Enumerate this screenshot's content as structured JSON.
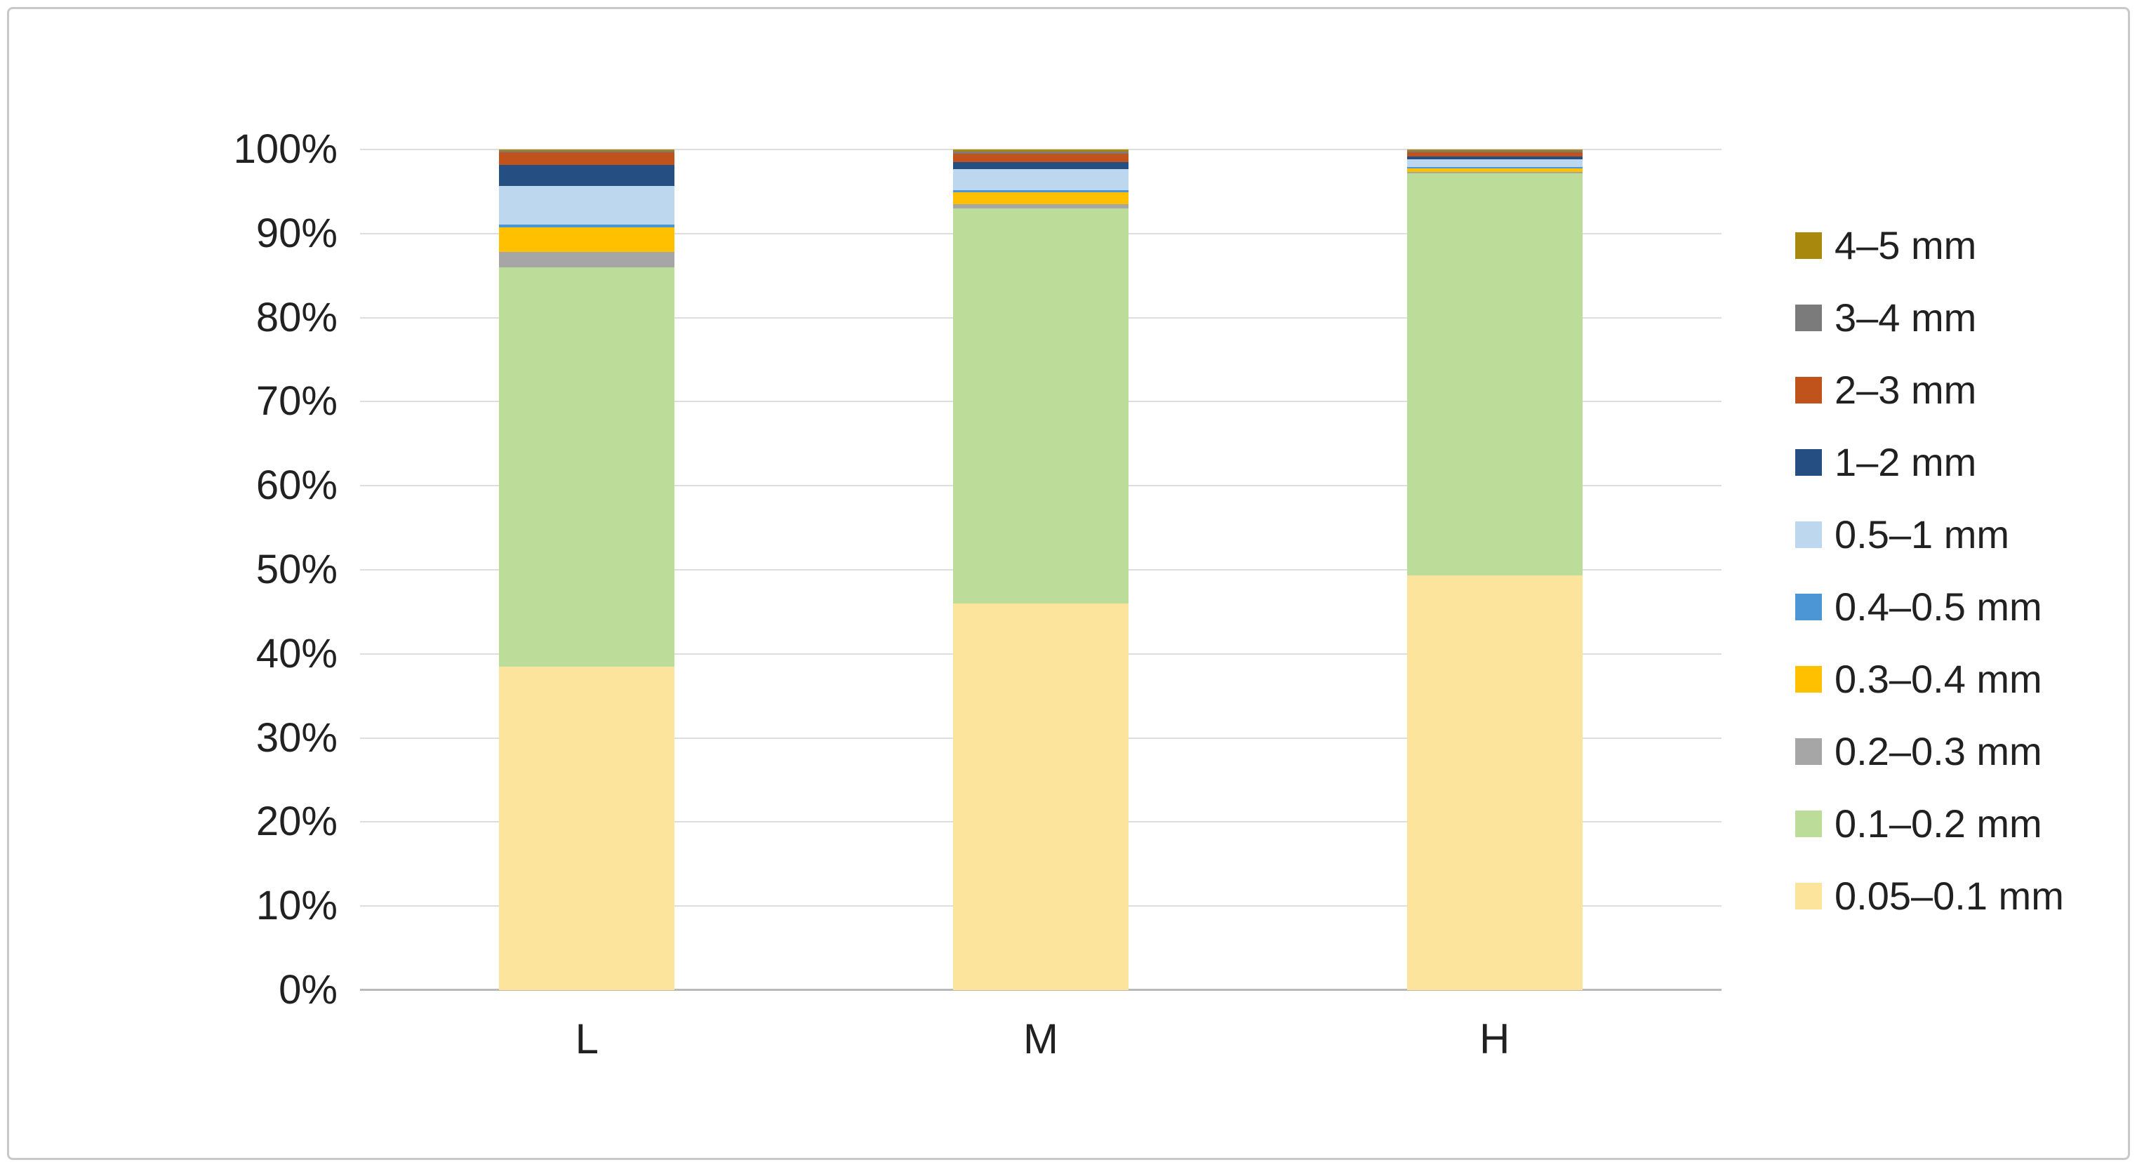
{
  "chart_data": {
    "type": "bar",
    "subtype": "stacked-100-percent-column",
    "title": "",
    "xlabel": "",
    "ylabel": "",
    "grid": true,
    "legend_position": "right",
    "ylim": [
      0,
      100
    ],
    "y_ticks": [
      "0%",
      "10%",
      "20%",
      "30%",
      "40%",
      "50%",
      "60%",
      "70%",
      "80%",
      "90%",
      "100%"
    ],
    "categories": [
      "L",
      "M",
      "H"
    ],
    "series": [
      {
        "name": "0.05–0.1 mm",
        "color": "#FCE49C",
        "values": [
          38.5,
          46.0,
          49.3
        ]
      },
      {
        "name": "0.1–0.2 mm",
        "color": "#BBDD99",
        "values": [
          47.55,
          47.0,
          47.9
        ]
      },
      {
        "name": "0.2–0.3 mm",
        "color": "#A6A6A6",
        "values": [
          1.8,
          0.5,
          0.15
        ]
      },
      {
        "name": "0.3–0.4 mm",
        "color": "#FFC000",
        "values": [
          2.9,
          1.4,
          0.4
        ]
      },
      {
        "name": "0.4–0.5 mm",
        "color": "#4D96D6",
        "values": [
          0.4,
          0.3,
          0.2
        ]
      },
      {
        "name": "0.5–1 mm",
        "color": "#BDD7EE",
        "values": [
          4.6,
          2.5,
          0.85
        ]
      },
      {
        "name": "1–2 mm",
        "color": "#254E82",
        "values": [
          2.5,
          0.8,
          0.4
        ]
      },
      {
        "name": "2–3 mm",
        "color": "#C0521B",
        "values": [
          1.5,
          1.0,
          0.5
        ]
      },
      {
        "name": "3–4 mm",
        "color": "#7B7B7B",
        "values": [
          0.15,
          0.25,
          0.15
        ]
      },
      {
        "name": "4–5 mm",
        "color": "#A8890D",
        "values": [
          0.15,
          0.25,
          0.15
        ]
      }
    ],
    "legend_order_top_to_bottom": [
      "4–5 mm",
      "3–4 mm",
      "2–3 mm",
      "1–2 mm",
      "0.5–1 mm",
      "0.4–0.5 mm",
      "0.3–0.4 mm",
      "0.2–0.3 mm",
      "0.1–0.2 mm",
      "0.05–0.1 mm"
    ],
    "colors": {
      "grid": "#DEDEDE",
      "axis": "#B9B9B9",
      "text": "#212121",
      "frame_border": "#C9C9C9",
      "background": "#FFFFFF"
    }
  }
}
